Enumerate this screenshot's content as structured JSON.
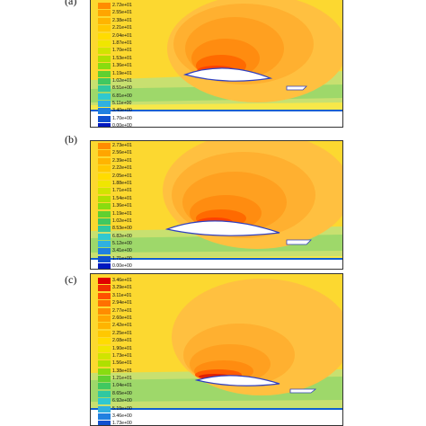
{
  "panels": [
    {
      "id": "a",
      "label": "(a)",
      "legend": [
        "2.72e+01",
        "2.55e+01",
        "2.38e+01",
        "2.21e+01",
        "2.04e+01",
        "1.87e+01",
        "1.70e+01",
        "1.53e+01",
        "1.36e+01",
        "1.19e+01",
        "1.02e+01",
        "8.51e+00",
        "6.81e+00",
        "5.11e+00",
        "3.40e+00",
        "1.70e+00",
        "0.00e+00"
      ],
      "colors": [
        "#ff8c00",
        "#ffa500",
        "#ffb400",
        "#ffc800",
        "#ffdc00",
        "#f0e600",
        "#d0e400",
        "#aee000",
        "#88dc10",
        "#60d030",
        "#40c860",
        "#30c8a0",
        "#30c8d0",
        "#30b0e0",
        "#2080e0",
        "#1050d0",
        "#0018c0"
      ]
    },
    {
      "id": "b",
      "label": "(b)",
      "legend": [
        "2.73e+01",
        "2.56e+01",
        "2.39e+01",
        "2.22e+01",
        "2.05e+01",
        "1.88e+01",
        "1.71e+01",
        "1.54e+01",
        "1.36e+01",
        "1.19e+01",
        "1.02e+01",
        "8.53e+00",
        "6.82e+00",
        "5.12e+00",
        "3.41e+00",
        "1.71e+00",
        "0.00e+00"
      ],
      "colors": [
        "#ff8c00",
        "#ffa500",
        "#ffb400",
        "#ffc800",
        "#ffdc00",
        "#f0e600",
        "#d0e400",
        "#aee000",
        "#88dc10",
        "#60d030",
        "#40c860",
        "#30c8a0",
        "#30c8d0",
        "#30b0e0",
        "#2080e0",
        "#1050d0",
        "#0018c0"
      ]
    },
    {
      "id": "c",
      "label": "(c)",
      "legend": [
        "3.46e+01",
        "3.29e+01",
        "3.11e+01",
        "2.94e+01",
        "2.77e+01",
        "2.60e+01",
        "2.42e+01",
        "2.25e+01",
        "2.08e+01",
        "1.90e+01",
        "1.73e+01",
        "1.56e+01",
        "1.38e+01",
        "1.21e+01",
        "1.04e+01",
        "8.65e+00",
        "6.92e+00",
        "5.19e+00",
        "3.46e+00",
        "1.73e+00"
      ],
      "colors": [
        "#e00000",
        "#f03000",
        "#ff5000",
        "#ff7000",
        "#ff8c00",
        "#ffa500",
        "#ffb400",
        "#ffc800",
        "#ffdc00",
        "#f0e600",
        "#d0e400",
        "#aee000",
        "#88dc10",
        "#60d030",
        "#40c860",
        "#30c8a0",
        "#30c8d0",
        "#30b0e0",
        "#2080e0",
        "#1050d0"
      ]
    }
  ]
}
